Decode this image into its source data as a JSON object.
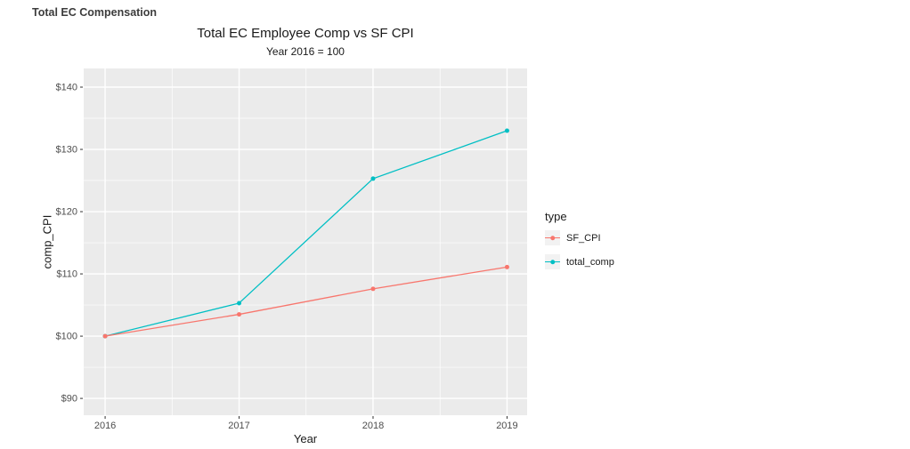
{
  "header": {
    "title": "Total EC Compensation"
  },
  "chart_data": {
    "type": "line",
    "title": "Total EC Employee Comp vs SF CPI",
    "subtitle": "Year 2016 = 100",
    "xlabel": "Year",
    "ylabel": "comp_CPI",
    "x": [
      2016,
      2017,
      2018,
      2019
    ],
    "series": [
      {
        "name": "SF_CPI",
        "color": "#F8766D",
        "values": [
          100,
          103.5,
          107.6,
          111.1
        ]
      },
      {
        "name": "total_comp",
        "color": "#00BFC4",
        "values": [
          100,
          105.3,
          125.3,
          133.0
        ]
      }
    ],
    "x_ticks": [
      {
        "value": 2016,
        "label": "2016"
      },
      {
        "value": 2017,
        "label": "2017"
      },
      {
        "value": 2018,
        "label": "2018"
      },
      {
        "value": 2019,
        "label": "2019"
      }
    ],
    "y_ticks": [
      {
        "value": 90,
        "label": "$90"
      },
      {
        "value": 100,
        "label": "$100"
      },
      {
        "value": 110,
        "label": "$110"
      },
      {
        "value": 120,
        "label": "$120"
      },
      {
        "value": 130,
        "label": "$130"
      },
      {
        "value": 140,
        "label": "$140"
      }
    ],
    "x_minor_ticks": [
      2016.5,
      2017.5,
      2018.5
    ],
    "y_minor_ticks": [
      95,
      105,
      115,
      125,
      135
    ],
    "x_domain": [
      2015.84,
      2019.15
    ],
    "y_domain": [
      87.3,
      143.0
    ],
    "grid": true,
    "legend": {
      "title": "type",
      "position": "right"
    },
    "colors": {
      "panel_bg": "#EBEBEB",
      "grid": "#FFFFFF",
      "tick": "#333333",
      "tick_label": "#4D4D4D",
      "legend_key_bg": "#F2F2F2"
    }
  }
}
